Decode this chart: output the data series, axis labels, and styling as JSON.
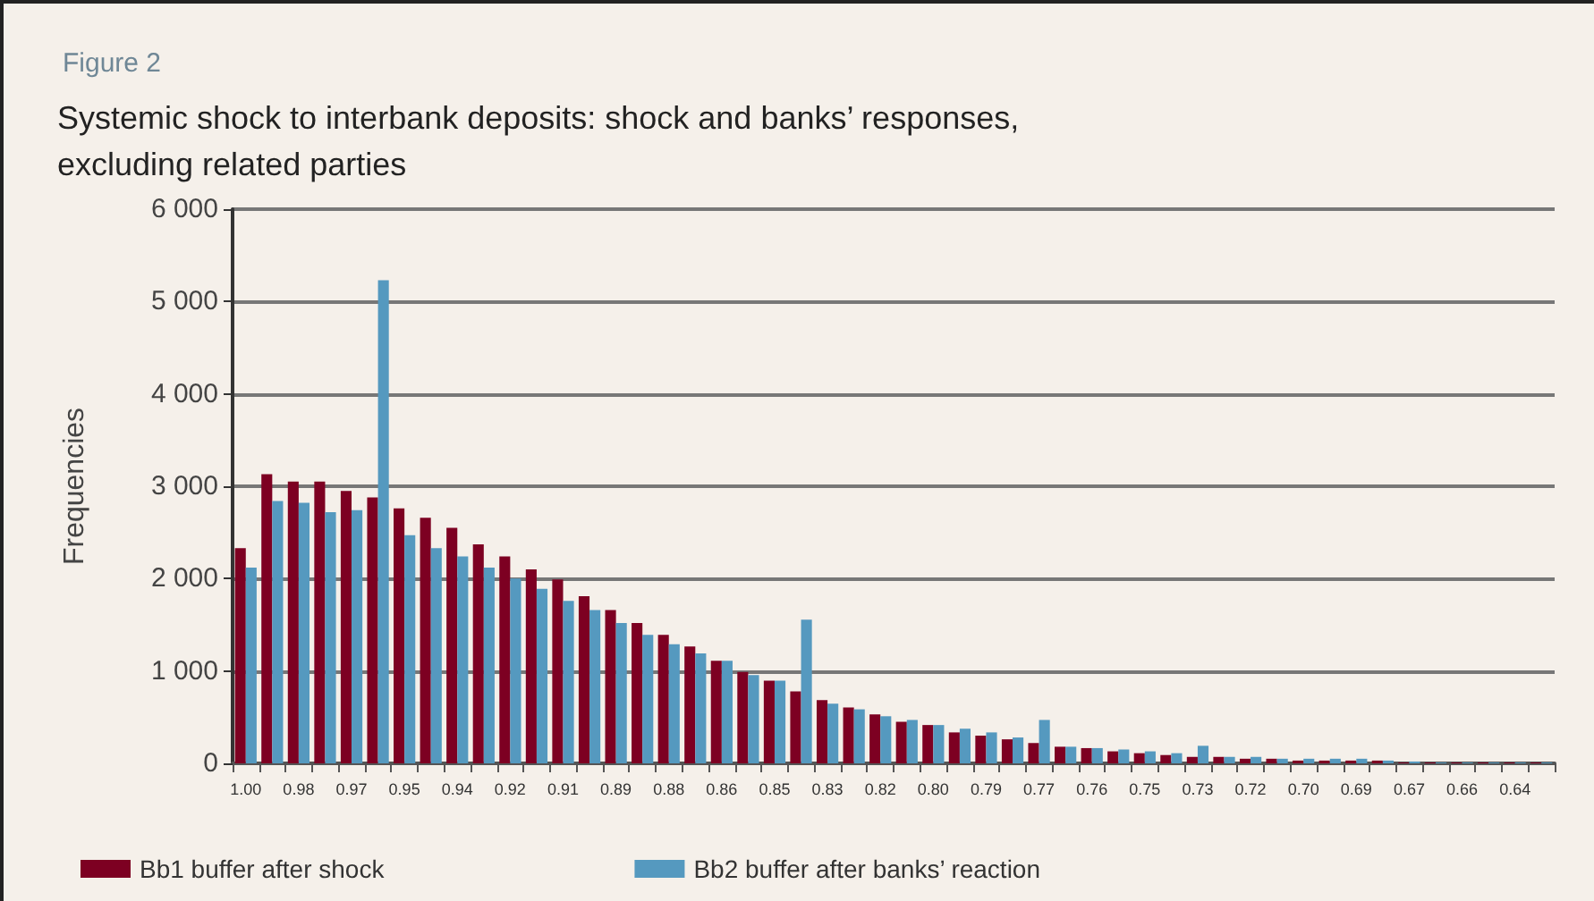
{
  "chart_data": {
    "type": "bar",
    "title": "Systemic shock to interbank deposits: shock and banks’ responses,\nexcluding related parties",
    "annotations": [
      "Figure 2"
    ],
    "ylabel": "Frequencies",
    "categories": [
      "1.00",
      null,
      "0.98",
      null,
      "0.97",
      null,
      "0.95",
      null,
      "0.94",
      null,
      "0.92",
      null,
      "0.91",
      null,
      "0.89",
      null,
      "0.88",
      null,
      "0.86",
      null,
      "0.85",
      null,
      "0.83",
      null,
      "0.82",
      null,
      "0.80",
      null,
      "0.79",
      null,
      "0.77",
      null,
      "0.76",
      null,
      "0.75",
      null,
      "0.73",
      null,
      "0.72",
      null,
      "0.70",
      null,
      "0.69",
      null,
      "0.67",
      null,
      "0.66",
      null,
      "0.64",
      null
    ],
    "series": [
      {
        "name": "Bb1 buffer after shock",
        "color": "#7d0022",
        "values": [
          2330,
          3130,
          3050,
          3050,
          2950,
          2880,
          2760,
          2660,
          2550,
          2370,
          2240,
          2100,
          1990,
          1810,
          1660,
          1520,
          1390,
          1265,
          1110,
          990,
          895,
          780,
          685,
          605,
          530,
          450,
          415,
          335,
          300,
          260,
          220,
          180,
          165,
          130,
          110,
          90,
          70,
          70,
          50,
          50,
          30,
          30,
          30,
          30,
          10,
          10,
          10,
          10,
          10,
          10
        ]
      },
      {
        "name": "Bb2 buffer after banks’ reaction",
        "color": "#5599bf",
        "values": [
          2120,
          2840,
          2820,
          2720,
          2740,
          5230,
          2470,
          2330,
          2240,
          2120,
          2000,
          1890,
          1760,
          1660,
          1520,
          1390,
          1290,
          1190,
          1110,
          955,
          895,
          1555,
          645,
          585,
          510,
          470,
          415,
          375,
          335,
          280,
          470,
          180,
          165,
          150,
          130,
          110,
          190,
          70,
          70,
          50,
          50,
          50,
          50,
          30,
          20,
          10,
          10,
          10,
          10,
          10
        ]
      }
    ],
    "ylim": [
      0,
      6000
    ],
    "yticks": [
      {
        "value": 0,
        "label": "0"
      },
      {
        "value": 1000,
        "label": "1 000"
      },
      {
        "value": 2000,
        "label": "2 000"
      },
      {
        "value": 3000,
        "label": "3 000"
      },
      {
        "value": 4000,
        "label": "4 000"
      },
      {
        "value": 5000,
        "label": "5 000"
      },
      {
        "value": 6000,
        "label": "6 000"
      }
    ],
    "grid": "y",
    "legend": "bottom"
  }
}
